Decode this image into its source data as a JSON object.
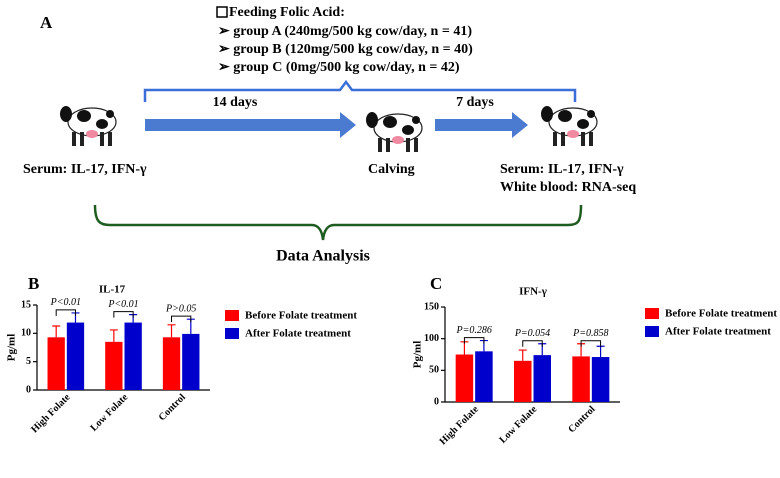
{
  "diagram": {
    "panel_label": "A",
    "feeding": {
      "title": "Feeding Folic Acid:",
      "groups": [
        "➢ group A (240mg/500  kg cow/day, n = 41)",
        "➢ group B (120mg/500  kg cow/day, n = 40)",
        "➢ group C (0mg/500  kg cow/day, n = 42)"
      ]
    },
    "interval_1": "14 days",
    "interval_2": "7 days",
    "stage_1": "Serum: IL-17, IFN-γ",
    "stage_2": "Calving",
    "stage_3": [
      "Serum: IL-17, IFN-γ",
      "White blood: RNA-seq"
    ],
    "analysis": "Data Analysis"
  },
  "chart_data": [
    {
      "type": "bar",
      "panel_label": "B",
      "title": "IL-17",
      "y_label": "Pg/ml",
      "categories": [
        "High Folate",
        "Low Folate",
        "Control"
      ],
      "series": [
        {
          "name": "Before Folate treatment",
          "color": "#ff0000",
          "values": [
            9.3,
            8.5,
            9.3
          ],
          "errors": [
            2.0,
            2.1,
            2.2
          ]
        },
        {
          "name": "After Folate treatment",
          "color": "#0000cc",
          "values": [
            11.9,
            11.9,
            9.9
          ],
          "errors": [
            1.7,
            1.4,
            2.6
          ]
        }
      ],
      "annotations": [
        "P<0.01",
        "P<0.01",
        "P>0.05"
      ],
      "ylim": [
        0,
        15
      ],
      "yticks": [
        0,
        5,
        10,
        15
      ]
    },
    {
      "type": "bar",
      "panel_label": "C",
      "title": "IFN-γ",
      "y_label": "Pg/ml",
      "categories": [
        "High Folate",
        "Low Folate",
        "Control"
      ],
      "series": [
        {
          "name": "Before Folate treatment",
          "color": "#ff0000",
          "values": [
            75,
            65,
            72
          ],
          "errors": [
            20,
            17,
            20
          ]
        },
        {
          "name": "After Folate treatment",
          "color": "#0000cc",
          "values": [
            80,
            74,
            71
          ],
          "errors": [
            17,
            18,
            17
          ]
        }
      ],
      "annotations": [
        "P=0.286",
        "P=0.054",
        "P=0.858"
      ],
      "ylim": [
        0,
        150
      ],
      "yticks": [
        0,
        50,
        100,
        150
      ]
    }
  ]
}
